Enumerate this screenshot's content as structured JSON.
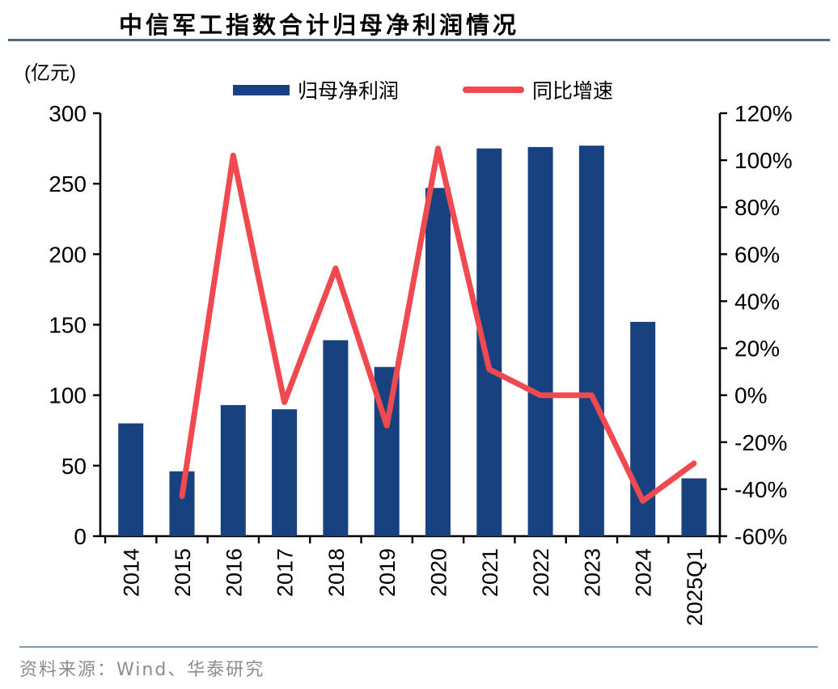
{
  "page": {
    "title": "中信军工指数合计归母净利润情况",
    "unit_label": "(亿元)",
    "source": "资料来源：Wind、华泰研究"
  },
  "legend": {
    "bar_label": "归母净利润",
    "line_label": "同比增速"
  },
  "colors": {
    "bar": "#17427F",
    "line": "#F0494F",
    "axis": "#000000",
    "tick_text": "#000000",
    "title_rule": "#4A6A83",
    "footer_rule": "#7E9BB0",
    "source_text": "#8C8C8C"
  },
  "chart_data": {
    "type": "bar+line",
    "title": "中信军工指数合计归母净利润情况",
    "categories": [
      "2014",
      "2015",
      "2016",
      "2017",
      "2018",
      "2019",
      "2020",
      "2021",
      "2022",
      "2023",
      "2024",
      "2025Q1"
    ],
    "series": [
      {
        "name": "归母净利润",
        "type": "bar",
        "axis": "left",
        "unit": "亿元",
        "values": [
          80,
          46,
          93,
          90,
          139,
          120,
          247,
          275,
          276,
          277,
          152,
          41
        ]
      },
      {
        "name": "同比增速",
        "type": "line",
        "axis": "right",
        "unit": "%",
        "values": [
          null,
          -43,
          102,
          -3,
          54,
          -13,
          105,
          11,
          0,
          0,
          -45,
          -29
        ]
      }
    ],
    "left_axis": {
      "label": "(亿元)",
      "min": 0,
      "max": 300,
      "ticks": [
        0,
        50,
        100,
        150,
        200,
        250,
        300
      ]
    },
    "right_axis": {
      "min": -60,
      "max": 120,
      "ticks": [
        120,
        100,
        80,
        60,
        40,
        20,
        0,
        -20,
        -40,
        -60
      ],
      "tick_labels": [
        "120%",
        "100%",
        "80%",
        "60%",
        "40%",
        "20%",
        "0%",
        "-20%",
        "-40%",
        "-60%"
      ]
    },
    "grid": false,
    "legend_position": "top-center"
  }
}
